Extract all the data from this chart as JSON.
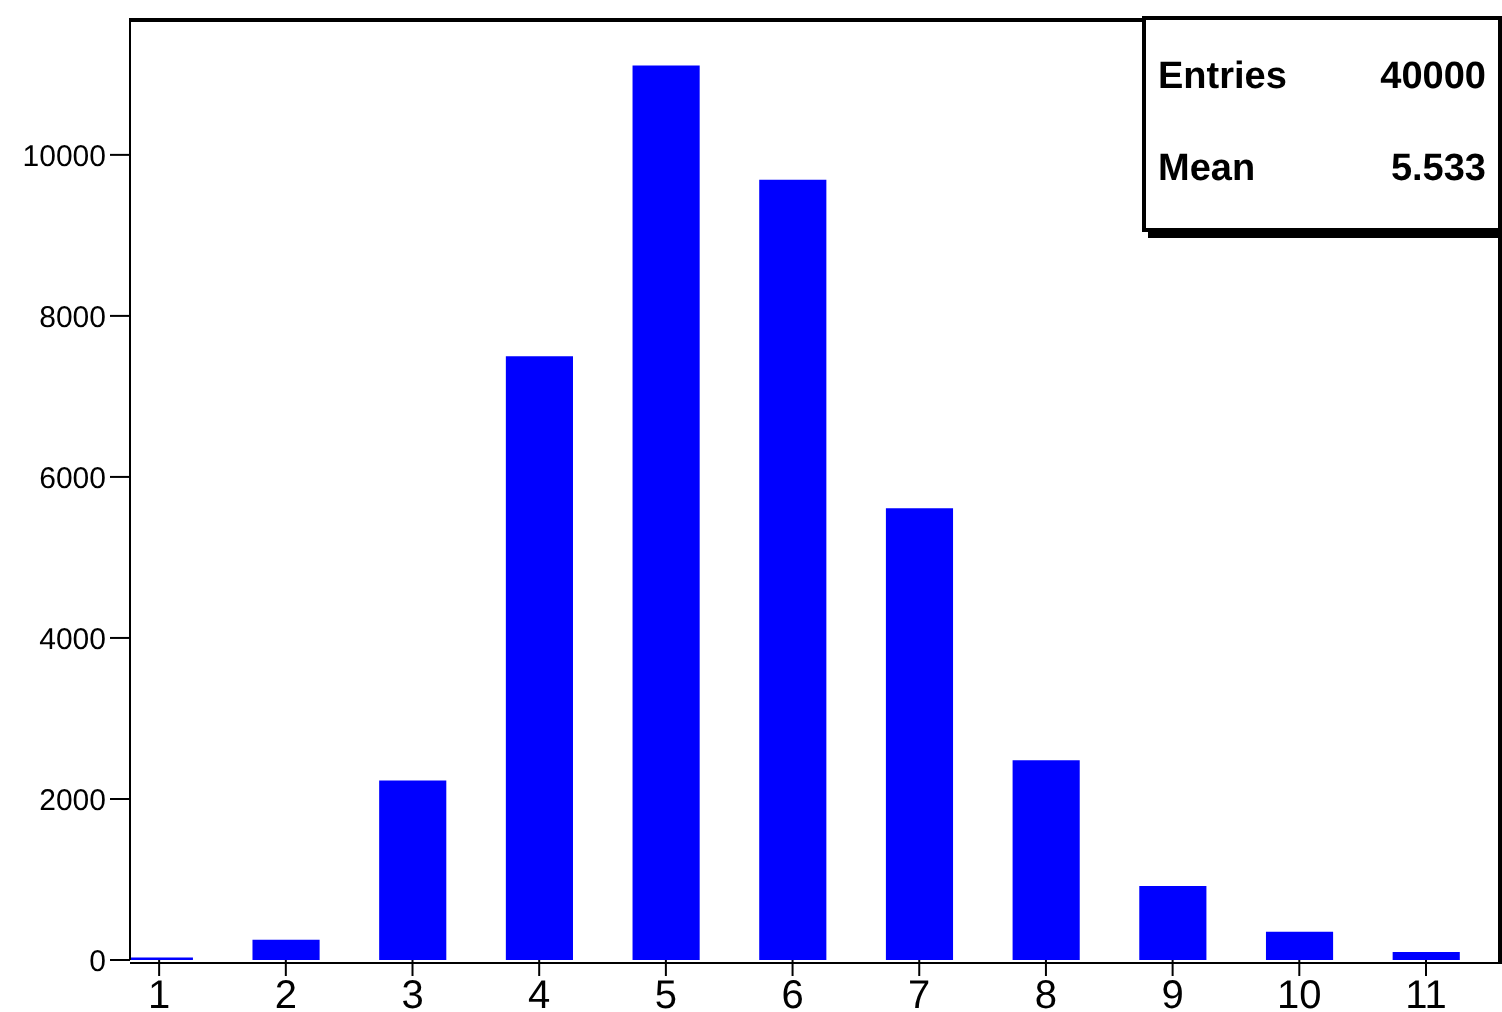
{
  "chart_data": {
    "type": "bar",
    "x": [
      1,
      2,
      3,
      4,
      5,
      6,
      7,
      8,
      9,
      10,
      11
    ],
    "values": [
      30,
      250,
      2230,
      7500,
      11110,
      9690,
      5610,
      2480,
      920,
      350,
      100
    ],
    "color": "#0000ff",
    "xlim": [
      0.77,
      11.6
    ],
    "xticks": [
      1,
      2,
      3,
      4,
      5,
      6,
      7,
      8,
      9,
      10,
      11
    ],
    "ylim": [
      0,
      11700
    ],
    "yticks": [
      0,
      2000,
      4000,
      6000,
      8000,
      10000
    ],
    "grid": false,
    "legend": false,
    "annotations": [
      "Entries",
      "40000",
      "Mean",
      "5.533"
    ]
  }
}
